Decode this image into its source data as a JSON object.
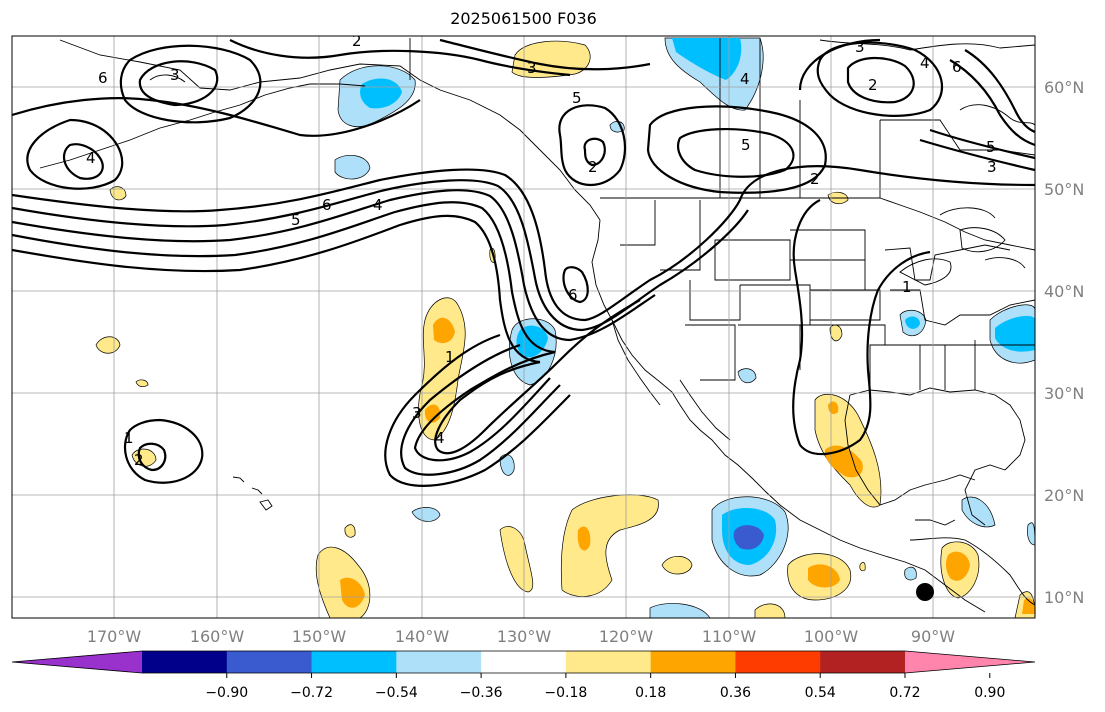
{
  "title": "2025061500 F036",
  "lat_labels": [
    "60°N",
    "50°N",
    "40°N",
    "30°N",
    "20°N",
    "10°N"
  ],
  "lon_labels": [
    "170°W",
    "160°W",
    "150°W",
    "140°W",
    "130°W",
    "120°W",
    "110°W",
    "100°W",
    "90°W"
  ],
  "colorbar": {
    "ticks": [
      "−0.90",
      "−0.72",
      "−0.54",
      "−0.36",
      "−0.18",
      "0.18",
      "0.36",
      "0.54",
      "0.72",
      "0.90"
    ],
    "colors": {
      "under": "#9932cc",
      "bins": [
        "#00008b",
        "#3a5bd0",
        "#00bfff",
        "#aee0fa",
        "#ffffff",
        "#ffe98a",
        "#ffa500",
        "#ff3c00",
        "#b22222"
      ],
      "over": "#ff85ad"
    }
  },
  "contour_labels": [
    "6",
    "3",
    "3",
    "2",
    "4",
    "3",
    "4",
    "5",
    "6",
    "2",
    "5",
    "3",
    "2",
    "4",
    "5",
    "6",
    "4",
    "5",
    "6",
    "2",
    "1",
    "2",
    "1",
    "3",
    "4",
    "1"
  ],
  "marker": "black-dot"
}
